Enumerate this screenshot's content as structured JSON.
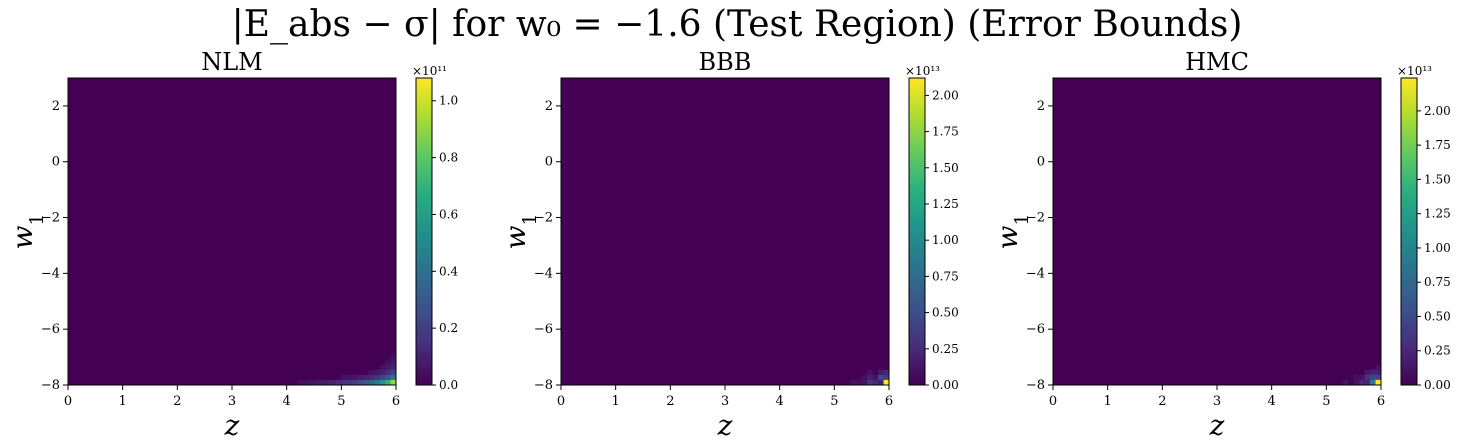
{
  "title": "|E_abs − σ| for w₀ = −1.6 (Test Region) (Error Bounds)",
  "chart_data": [
    {
      "type": "heatmap",
      "title": "NLM",
      "xlabel": "z",
      "ylabel": "w1",
      "xlim": [
        0,
        6
      ],
      "ylim": [
        -8,
        3
      ],
      "xticks": [
        "0",
        "1",
        "2",
        "3",
        "4",
        "5",
        "6"
      ],
      "yticks": [
        "2",
        "0",
        "−2",
        "−4",
        "−6",
        "−8"
      ],
      "colormap": "viridis",
      "colorbar": {
        "multiplier": "×10¹¹",
        "range": [
          0,
          1.08
        ],
        "ticks": [
          "0.0",
          "0.2",
          "0.4",
          "0.6",
          "0.8",
          "1.0"
        ]
      },
      "hotspot": {
        "z": 6.0,
        "w1": -8.0,
        "peak": 1.08,
        "pattern": "smooth"
      }
    },
    {
      "type": "heatmap",
      "title": "BBB",
      "xlabel": "z",
      "ylabel": "w1",
      "xlim": [
        0,
        6
      ],
      "ylim": [
        -8,
        3
      ],
      "xticks": [
        "0",
        "1",
        "2",
        "3",
        "4",
        "5",
        "6"
      ],
      "yticks": [
        "2",
        "0",
        "−2",
        "−4",
        "−6",
        "−8"
      ],
      "colormap": "viridis",
      "colorbar": {
        "multiplier": "×10¹³",
        "range": [
          0,
          2.12
        ],
        "ticks": [
          "0.00",
          "0.25",
          "0.50",
          "0.75",
          "1.00",
          "1.25",
          "1.50",
          "1.75",
          "2.00"
        ]
      },
      "hotspot": {
        "z": 6.0,
        "w1": -8.0,
        "peak": 2.12,
        "pattern": "speckled"
      }
    },
    {
      "type": "heatmap",
      "title": "HMC",
      "xlabel": "z",
      "ylabel": "w1",
      "xlim": [
        0,
        6
      ],
      "ylim": [
        -8,
        3
      ],
      "xticks": [
        "0",
        "1",
        "2",
        "3",
        "4",
        "5",
        "6"
      ],
      "yticks": [
        "2",
        "0",
        "−2",
        "−4",
        "−6",
        "−8"
      ],
      "colormap": "viridis",
      "colorbar": {
        "multiplier": "×10¹³",
        "range": [
          0,
          2.24
        ],
        "ticks": [
          "0.00",
          "0.25",
          "0.50",
          "0.75",
          "1.00",
          "1.25",
          "1.50",
          "1.75",
          "2.00"
        ]
      },
      "hotspot": {
        "z": 6.0,
        "w1": -8.0,
        "peak": 2.24,
        "pattern": "speckled"
      }
    }
  ]
}
